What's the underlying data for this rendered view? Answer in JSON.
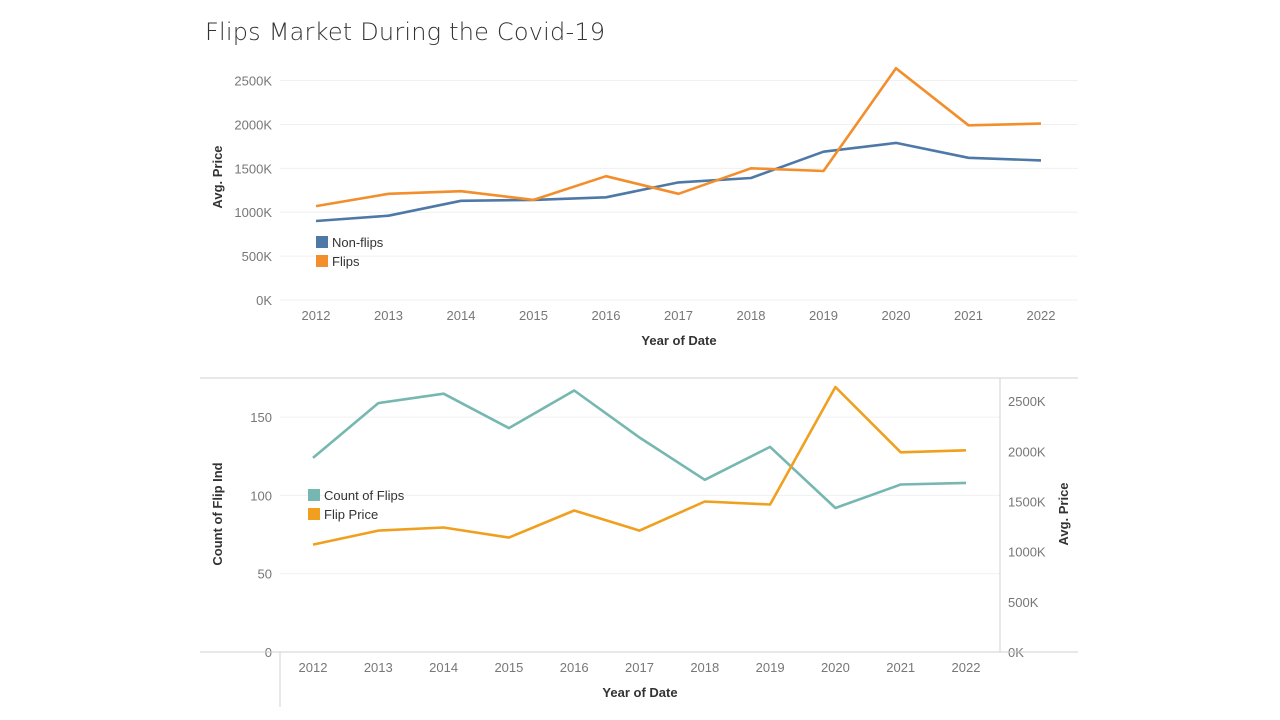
{
  "page": {
    "title": "Flips Market During the Covid-19"
  },
  "colors": {
    "nonflips": "#4e79a7",
    "flips": "#f28e2b",
    "count": "#76b7b2",
    "flipprice": "#f0a01e",
    "grid": "#f0f0f0",
    "axis": "#d0d0d0"
  },
  "chart_data": [
    {
      "type": "line",
      "title": "Flips Market During the Covid-19",
      "xlabel": "Year of Date",
      "ylabel": "Avg. Price",
      "x": [
        "2012",
        "2013",
        "2014",
        "2015",
        "2016",
        "2017",
        "2018",
        "2019",
        "2020",
        "2021",
        "2022"
      ],
      "yticks": [
        "0K",
        "500K",
        "1000K",
        "1500K",
        "2000K",
        "2500K"
      ],
      "ylim": [
        0,
        2700
      ],
      "grid": true,
      "legend": "bottom-left",
      "series": [
        {
          "name": "Non-flips",
          "values": [
            900,
            960,
            1130,
            1140,
            1170,
            1340,
            1390,
            1690,
            1790,
            1620,
            1590
          ]
        },
        {
          "name": "Flips",
          "values": [
            1070,
            1210,
            1240,
            1140,
            1410,
            1210,
            1500,
            1470,
            2640,
            1990,
            2010
          ]
        }
      ]
    },
    {
      "type": "line",
      "xlabel": "Year of Date",
      "ylabel": "Count of Flip Ind",
      "ylabel_right": "Avg. Price",
      "x": [
        "2012",
        "2013",
        "2014",
        "2015",
        "2016",
        "2017",
        "2018",
        "2019",
        "2020",
        "2021",
        "2022"
      ],
      "yticks_left": [
        "0",
        "50",
        "100",
        "150"
      ],
      "yticks_right": [
        "0K",
        "500K",
        "1000K",
        "1500K",
        "2000K",
        "2500K"
      ],
      "ylim_left": [
        0,
        175
      ],
      "ylim_right": [
        0,
        2730
      ],
      "grid": true,
      "legend": "center-left",
      "series": [
        {
          "name": "Count of Flips",
          "axis": "left",
          "values": [
            124,
            159,
            165,
            143,
            167,
            137,
            110,
            131,
            92,
            107,
            108
          ]
        },
        {
          "name": "Flip Price",
          "axis": "right",
          "values": [
            1070,
            1210,
            1240,
            1140,
            1410,
            1210,
            1500,
            1470,
            2640,
            1990,
            2010
          ]
        }
      ]
    }
  ]
}
